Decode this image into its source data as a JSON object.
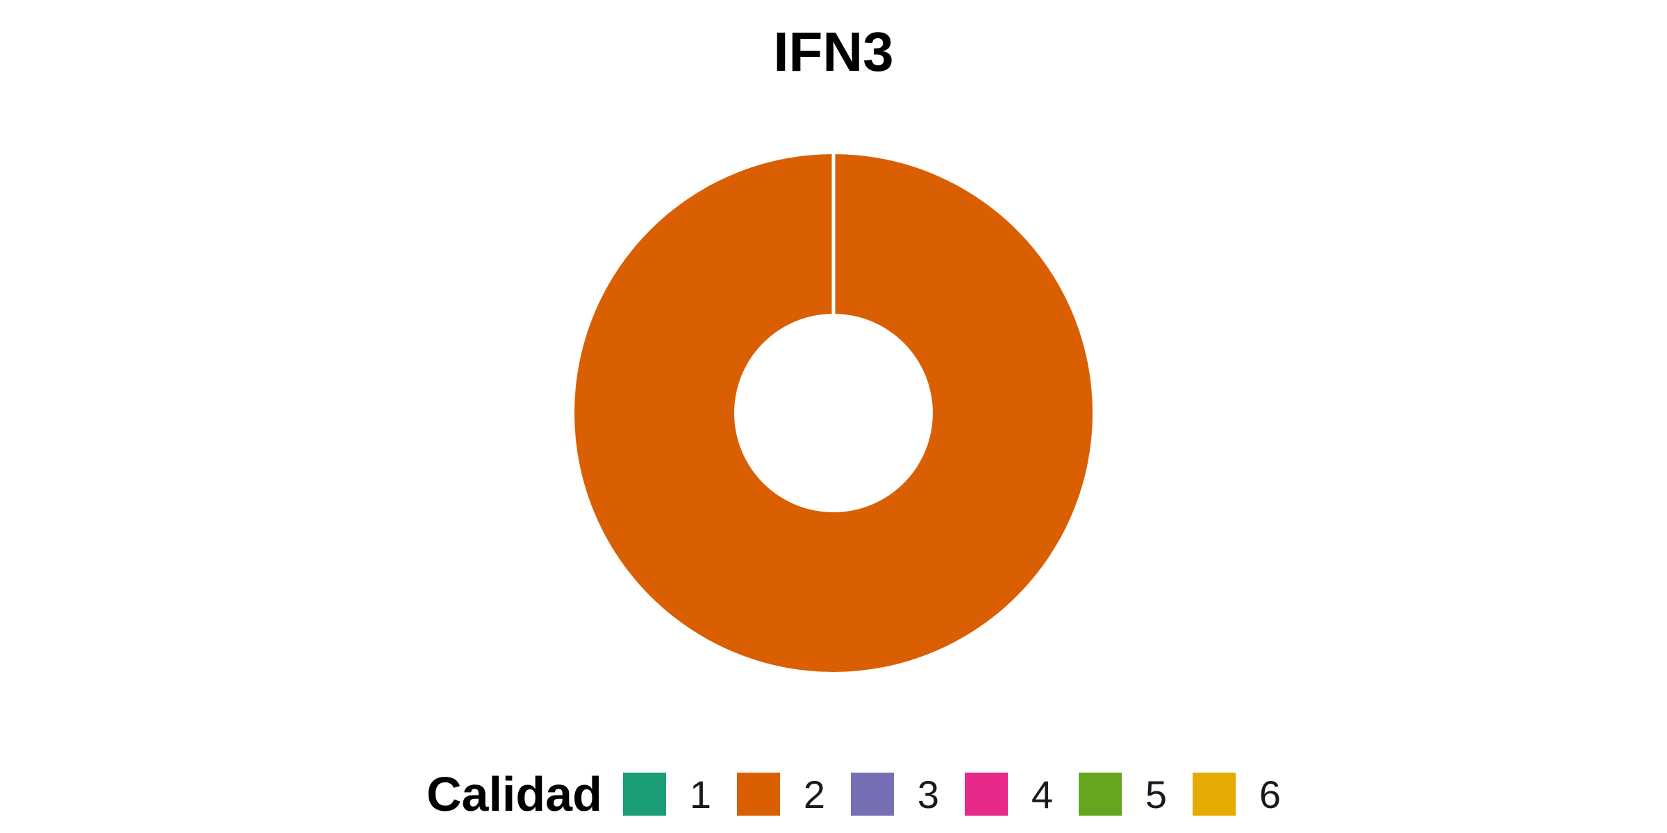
{
  "chart_data": {
    "type": "pie",
    "variant": "donut",
    "title": "IFN3",
    "legend": {
      "title": "Calidad",
      "position": "bottom",
      "entries": [
        {
          "label": "1",
          "color": "#1b9e77"
        },
        {
          "label": "2",
          "color": "#d95f02"
        },
        {
          "label": "3",
          "color": "#7570b3"
        },
        {
          "label": "4",
          "color": "#e7298a"
        },
        {
          "label": "5",
          "color": "#66a61e"
        },
        {
          "label": "6",
          "color": "#e6ab02"
        }
      ]
    },
    "slices": [
      {
        "category": "1",
        "value": 0,
        "color": "#1b9e77"
      },
      {
        "category": "2",
        "value": 100,
        "color": "#d95f02"
      },
      {
        "category": "3",
        "value": 0,
        "color": "#7570b3"
      },
      {
        "category": "4",
        "value": 0,
        "color": "#e7298a"
      },
      {
        "category": "5",
        "value": 0,
        "color": "#66a61e"
      },
      {
        "category": "6",
        "value": 0,
        "color": "#e6ab02"
      }
    ],
    "unit": "percent"
  }
}
